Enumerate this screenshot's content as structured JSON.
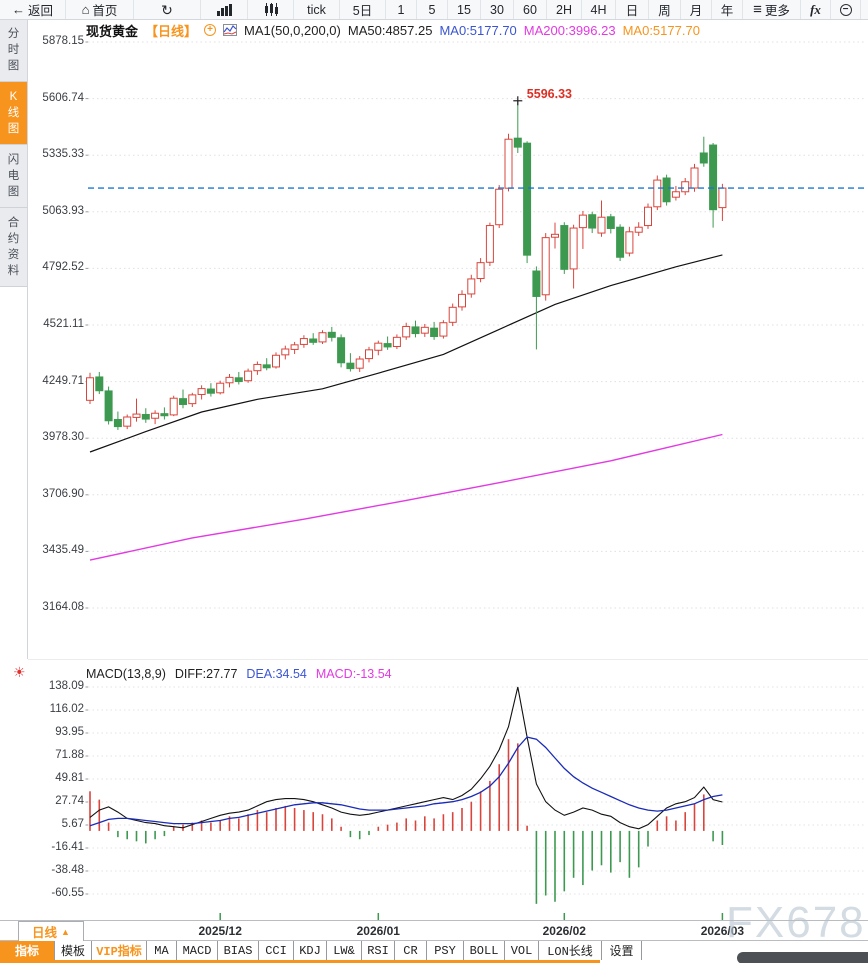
{
  "toolbar": {
    "items": [
      {
        "name": "back",
        "label": "返回",
        "icon": "back-arrow",
        "w": 66
      },
      {
        "name": "home",
        "label": "首页",
        "icon": "home",
        "w": 68
      },
      {
        "name": "refresh",
        "label": "",
        "icon": "refresh",
        "w": 67
      },
      {
        "name": "bar-chart-mode",
        "label": "",
        "icon": "bar-chart",
        "w": 47
      },
      {
        "name": "candle-mode",
        "label": "",
        "icon": "candles",
        "w": 46
      },
      {
        "name": "tick",
        "label": "tick",
        "w": 46
      },
      {
        "name": "5d",
        "label": "5日",
        "w": 46
      },
      {
        "name": "1min",
        "label": "1",
        "w": 31
      },
      {
        "name": "5min",
        "label": "5",
        "w": 31
      },
      {
        "name": "15min",
        "label": "15",
        "w": 33
      },
      {
        "name": "30min",
        "label": "30",
        "w": 33
      },
      {
        "name": "60min",
        "label": "60",
        "w": 33
      },
      {
        "name": "2h",
        "label": "2H",
        "w": 35
      },
      {
        "name": "4h",
        "label": "4H",
        "w": 34
      },
      {
        "name": "day",
        "label": "日",
        "w": 33
      },
      {
        "name": "week",
        "label": "周",
        "w": 32
      },
      {
        "name": "month",
        "label": "月",
        "w": 31
      },
      {
        "name": "year",
        "label": "年",
        "w": 31
      },
      {
        "name": "more",
        "label": "更多",
        "icon": "menu",
        "w": 58
      },
      {
        "name": "fx",
        "label": "",
        "icon": "fx",
        "w": 30
      },
      {
        "name": "zoom-out",
        "label": "",
        "icon": "zoom-out",
        "w": 30
      },
      {
        "name": "zoom-in",
        "label": "",
        "icon": "zoom-in",
        "w": 30
      }
    ]
  },
  "sidebar": {
    "items": [
      {
        "label": "分时图",
        "active": false
      },
      {
        "label": "K线图",
        "active": true
      },
      {
        "label": "闪电图",
        "active": false
      },
      {
        "label": "合约资料",
        "active": false
      }
    ]
  },
  "header": {
    "symbol": "现货黄金",
    "period": "【日线】",
    "ma_group": "MA1(50,0,200,0)",
    "ma50": "MA50:4857.25",
    "ma0_blue": "MA0:5177.70",
    "ma200": "MA200:3996.23",
    "ma0_orange": "MA0:5177.70"
  },
  "macd_header": {
    "title": "MACD(13,8,9)",
    "diff": "DIFF:27.77",
    "dea": "DEA:34.54",
    "macd": "MACD:-13.54"
  },
  "period_button": {
    "label": "日线",
    "arrow": "▲"
  },
  "tabs": [
    {
      "label": "指标",
      "w": 55,
      "active": true
    },
    {
      "label": "模板",
      "w": 37
    },
    {
      "label": "VIP指标",
      "w": 55,
      "vip": true
    },
    {
      "label": "MA",
      "w": 30
    },
    {
      "label": "MACD",
      "w": 41
    },
    {
      "label": "BIAS",
      "w": 41
    },
    {
      "label": "CCI",
      "w": 35
    },
    {
      "label": "KDJ",
      "w": 33
    },
    {
      "label": "LW&",
      "w": 35
    },
    {
      "label": "RSI",
      "w": 33
    },
    {
      "label": "CR",
      "w": 32
    },
    {
      "label": "PSY",
      "w": 37
    },
    {
      "label": "BOLL",
      "w": 41
    },
    {
      "label": "VOL",
      "w": 34
    },
    {
      "label": "LON长线",
      "w": 63
    },
    {
      "label": "设置",
      "w": 40
    }
  ],
  "watermark": "FX678",
  "colors": {
    "accent": "#f7941d",
    "up": "#d9453c",
    "down": "#3d9950",
    "ma50": "#111111",
    "ma200": "#e23ae2",
    "dea": "#1a2bb8",
    "diff": "#111111",
    "price_line": "#1b76d2",
    "annotation": "#d93025"
  },
  "chart_data": [
    {
      "type": "candlestick",
      "title": "现货黄金 日线",
      "y_ticks": [
        "5878.15",
        "5606.74",
        "5335.33",
        "5063.93",
        "4792.52",
        "4521.11",
        "4249.71",
        "3978.30",
        "3706.90",
        "3435.49",
        "3164.08"
      ],
      "ylim": [
        3164.08,
        5878.15
      ],
      "x_ticks": [
        {
          "label": "2025/12",
          "index": 14
        },
        {
          "label": "2026/01",
          "index": 31
        },
        {
          "label": "2026/02",
          "index": 51
        },
        {
          "label": "2026/03",
          "index": 68
        }
      ],
      "price_line": 5177.7,
      "annotation": {
        "index": 46,
        "value": 5596.33,
        "text": "5596.33"
      },
      "ma50_points": [
        [
          0,
          3912
        ],
        [
          6,
          4010
        ],
        [
          12,
          4104
        ],
        [
          18,
          4165
        ],
        [
          25,
          4215
        ],
        [
          31,
          4290
        ],
        [
          38,
          4380
        ],
        [
          44,
          4500
        ],
        [
          50,
          4620
        ],
        [
          56,
          4710
        ],
        [
          63,
          4800
        ],
        [
          68,
          4857.25
        ]
      ],
      "ma200_points": [
        [
          0,
          3394
        ],
        [
          11,
          3500
        ],
        [
          23,
          3590
        ],
        [
          34,
          3680
        ],
        [
          44,
          3765
        ],
        [
          56,
          3870
        ],
        [
          68,
          3996.23
        ]
      ],
      "candles": [
        [
          4160,
          4292,
          4142,
          4268
        ],
        [
          4272,
          4296,
          4190,
          4206
        ],
        [
          4205,
          4226,
          4044,
          4062
        ],
        [
          4068,
          4106,
          4018,
          4034
        ],
        [
          4036,
          4092,
          4022,
          4080
        ],
        [
          4078,
          4168,
          4058,
          4094
        ],
        [
          4092,
          4122,
          4052,
          4070
        ],
        [
          4074,
          4112,
          4046,
          4098
        ],
        [
          4096,
          4126,
          4068,
          4086
        ],
        [
          4090,
          4182,
          4084,
          4170
        ],
        [
          4168,
          4212,
          4122,
          4140
        ],
        [
          4144,
          4196,
          4128,
          4186
        ],
        [
          4188,
          4232,
          4164,
          4216
        ],
        [
          4214,
          4242,
          4178,
          4194
        ],
        [
          4196,
          4254,
          4188,
          4242
        ],
        [
          4244,
          4286,
          4222,
          4270
        ],
        [
          4268,
          4296,
          4236,
          4250
        ],
        [
          4254,
          4312,
          4244,
          4300
        ],
        [
          4302,
          4346,
          4282,
          4332
        ],
        [
          4330,
          4362,
          4304,
          4316
        ],
        [
          4320,
          4390,
          4312,
          4376
        ],
        [
          4378,
          4422,
          4356,
          4406
        ],
        [
          4404,
          4440,
          4382,
          4426
        ],
        [
          4428,
          4472,
          4412,
          4456
        ],
        [
          4454,
          4482,
          4426,
          4438
        ],
        [
          4440,
          4496,
          4430,
          4484
        ],
        [
          4486,
          4512,
          4442,
          4462
        ],
        [
          4460,
          4476,
          4318,
          4340
        ],
        [
          4338,
          4386,
          4298,
          4312
        ],
        [
          4314,
          4372,
          4296,
          4358
        ],
        [
          4360,
          4416,
          4342,
          4402
        ],
        [
          4400,
          4446,
          4376,
          4434
        ],
        [
          4432,
          4466,
          4402,
          4416
        ],
        [
          4418,
          4476,
          4406,
          4462
        ],
        [
          4464,
          4532,
          4450,
          4514
        ],
        [
          4512,
          4542,
          4462,
          4480
        ],
        [
          4482,
          4526,
          4464,
          4510
        ],
        [
          4506,
          4536,
          4450,
          4466
        ],
        [
          4468,
          4544,
          4456,
          4532
        ],
        [
          4534,
          4624,
          4516,
          4606
        ],
        [
          4608,
          4688,
          4590,
          4668
        ],
        [
          4670,
          4762,
          4652,
          4742
        ],
        [
          4744,
          4842,
          4726,
          4820
        ],
        [
          4822,
          5012,
          4804,
          4998
        ],
        [
          5002,
          5192,
          4986,
          5172
        ],
        [
          5177,
          5438,
          5162,
          5412
        ],
        [
          5417,
          5596.33,
          5346,
          5374
        ],
        [
          5393,
          5402,
          4818,
          4856
        ],
        [
          4780,
          4802,
          4404,
          4658
        ],
        [
          4666,
          4962,
          4638,
          4940
        ],
        [
          4942,
          5012,
          4888,
          4956
        ],
        [
          4998,
          5014,
          4766,
          4788
        ],
        [
          4790,
          5002,
          4696,
          4986
        ],
        [
          4988,
          5068,
          4886,
          5048
        ],
        [
          5050,
          5064,
          4962,
          4986
        ],
        [
          4962,
          5118,
          4944,
          5038
        ],
        [
          5040,
          5054,
          4960,
          4984
        ],
        [
          4990,
          5004,
          4828,
          4846
        ],
        [
          4866,
          4992,
          4850,
          4968
        ],
        [
          4966,
          5014,
          4948,
          4990
        ],
        [
          4998,
          5104,
          4982,
          5086
        ],
        [
          5088,
          5238,
          5072,
          5216
        ],
        [
          5226,
          5242,
          5094,
          5112
        ],
        [
          5134,
          5188,
          5118,
          5160
        ],
        [
          5160,
          5226,
          5144,
          5208
        ],
        [
          5178,
          5294,
          5160,
          5274
        ],
        [
          5346,
          5424,
          5280,
          5298
        ],
        [
          5384,
          5394,
          4988,
          5074
        ],
        [
          5084,
          5198,
          5020,
          5177.7
        ]
      ]
    },
    {
      "type": "macd",
      "params": "MACD(13,8,9)",
      "y_ticks": [
        "138.09",
        "116.02",
        "93.95",
        "71.88",
        "49.81",
        "27.74",
        "5.67",
        "-16.41",
        "-38.48",
        "-60.55"
      ],
      "ylim": [
        -60.55,
        138.09
      ],
      "diff": [
        13,
        20,
        23,
        18,
        12,
        10,
        8,
        7,
        5,
        4,
        3,
        6,
        9,
        12,
        15,
        17,
        18,
        20,
        24,
        28,
        30,
        31,
        31,
        30,
        28,
        25,
        22,
        18,
        16,
        15,
        16,
        18,
        20,
        22,
        24,
        26,
        28,
        30,
        32,
        30,
        34,
        40,
        50,
        62,
        78,
        100,
        138.09,
        90,
        45,
        28,
        20,
        15,
        18,
        22,
        20,
        16,
        14,
        8,
        4,
        2,
        6,
        14,
        22,
        26,
        28,
        32,
        42,
        30,
        27.77
      ],
      "dea": [
        5,
        8,
        11,
        12,
        12,
        11,
        10,
        9,
        8,
        7,
        7,
        7,
        8,
        9,
        10,
        12,
        13,
        15,
        17,
        19,
        21,
        23,
        25,
        26,
        27,
        27,
        26,
        25,
        23,
        21,
        20,
        20,
        20,
        21,
        22,
        23,
        24,
        26,
        27,
        28,
        30,
        33,
        37,
        43,
        52,
        65,
        80,
        90,
        88,
        80,
        70,
        60,
        52,
        46,
        41,
        37,
        33,
        29,
        25,
        22,
        20,
        19,
        20,
        22,
        24,
        26,
        30,
        33,
        34.54
      ],
      "hist": [
        38,
        30,
        8,
        -6,
        -8,
        -10,
        -12,
        -8,
        -5,
        4,
        6,
        8,
        10,
        8,
        10,
        14,
        12,
        16,
        20,
        18,
        22,
        24,
        22,
        20,
        18,
        16,
        12,
        4,
        -6,
        -8,
        -4,
        4,
        6,
        8,
        12,
        10,
        14,
        12,
        16,
        18,
        22,
        28,
        38,
        48,
        64,
        88,
        84,
        5,
        -70,
        -62,
        -68,
        -58,
        -45,
        -52,
        -38,
        -33,
        -40,
        -30,
        -45,
        -35,
        -15,
        10,
        14,
        10,
        18,
        26,
        35,
        -10,
        -13.54
      ]
    }
  ]
}
